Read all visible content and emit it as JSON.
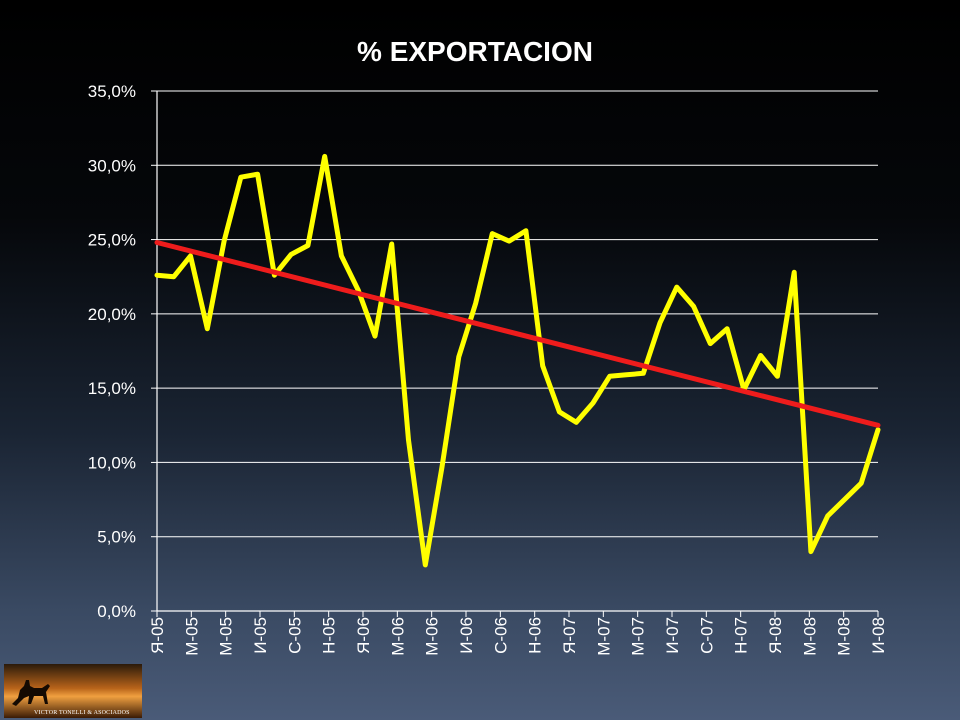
{
  "chart_data": {
    "type": "line",
    "title": "% EXPORTACION",
    "ylim": [
      0,
      35
    ],
    "y_ticks": [
      "0,0%",
      "5,0%",
      "10,0%",
      "15,0%",
      "20,0%",
      "25,0%",
      "30,0%",
      "35,0%"
    ],
    "grid": true,
    "x_tick_labels": [
      "Я-05",
      "М-05",
      "М-05",
      "И-05",
      "С-05",
      "Н-05",
      "Я-06",
      "М-06",
      "М-06",
      "И-06",
      "С-06",
      "Н-06",
      "Я-07",
      "М-07",
      "М-07",
      "И-07",
      "С-07",
      "Н-07",
      "Я-08",
      "М-08",
      "М-08",
      "И-08"
    ],
    "series": [
      {
        "color": "#ffff00",
        "values": [
          22.6,
          22.5,
          23.9,
          19.0,
          24.9,
          29.2,
          29.4,
          22.6,
          24.0,
          24.6,
          30.6,
          23.9,
          21.6,
          18.5,
          24.7,
          11.5,
          3.1,
          9.7,
          17.1,
          20.7,
          25.4,
          24.9,
          25.6,
          16.5,
          13.4,
          12.7,
          14.0,
          15.8,
          15.9,
          16.0,
          19.4,
          21.8,
          20.5,
          18.0,
          19.0,
          14.9,
          17.2,
          15.8,
          22.8,
          4.0,
          6.4,
          7.5,
          8.6,
          12.2
        ]
      },
      {
        "color": "#ee1c1c",
        "values": [
          24.8,
          12.5
        ]
      }
    ]
  },
  "logo": {
    "text": "VICTOR TONELLI & ASOCIADOS"
  }
}
